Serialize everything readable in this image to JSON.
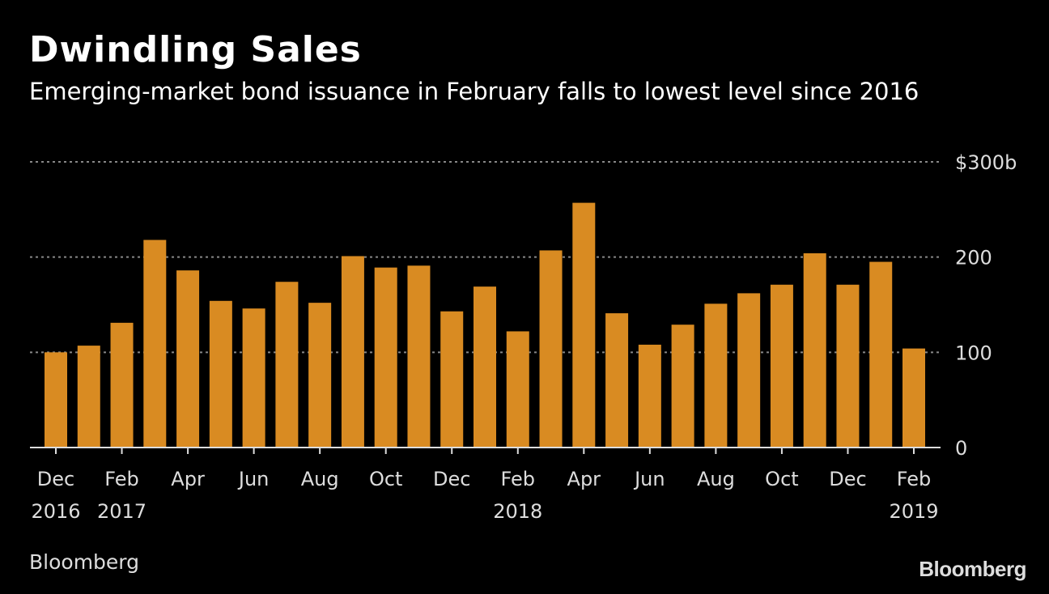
{
  "chart_data": {
    "type": "bar",
    "title": "Dwindling Sales",
    "subtitle": "Emerging-market bond issuance in February falls to lowest level since 2016",
    "xlabel": "",
    "ylabel": "",
    "ylim": [
      0,
      300
    ],
    "yticks": [
      0,
      100,
      200,
      300
    ],
    "ytick_labels": [
      "0",
      "100",
      "200",
      "$300b"
    ],
    "grid": true,
    "bar_color": "#d98b22",
    "categories": [
      "Dec 2016",
      "Jan 2017",
      "Feb 2017",
      "Mar 2017",
      "Apr 2017",
      "May 2017",
      "Jun 2017",
      "Jul 2017",
      "Aug 2017",
      "Sep 2017",
      "Oct 2017",
      "Nov 2017",
      "Dec 2017",
      "Jan 2018",
      "Feb 2018",
      "Mar 2018",
      "Apr 2018",
      "May 2018",
      "Jun 2018",
      "Jul 2018",
      "Aug 2018",
      "Sep 2018",
      "Oct 2018",
      "Nov 2018",
      "Dec 2018",
      "Jan 2019",
      "Feb 2019"
    ],
    "values": [
      100,
      107,
      131,
      218,
      186,
      154,
      146,
      174,
      152,
      201,
      189,
      191,
      143,
      169,
      122,
      207,
      257,
      141,
      108,
      129,
      151,
      162,
      171,
      204,
      171,
      195,
      104
    ],
    "xtick_labels": [
      {
        "index": 0,
        "month": "Dec",
        "year": "2016"
      },
      {
        "index": 2,
        "month": "Feb",
        "year": "2017"
      },
      {
        "index": 4,
        "month": "Apr",
        "year": ""
      },
      {
        "index": 6,
        "month": "Jun",
        "year": ""
      },
      {
        "index": 8,
        "month": "Aug",
        "year": ""
      },
      {
        "index": 10,
        "month": "Oct",
        "year": ""
      },
      {
        "index": 12,
        "month": "Dec",
        "year": ""
      },
      {
        "index": 14,
        "month": "Feb",
        "year": "2018"
      },
      {
        "index": 16,
        "month": "Apr",
        "year": ""
      },
      {
        "index": 18,
        "month": "Jun",
        "year": ""
      },
      {
        "index": 20,
        "month": "Aug",
        "year": ""
      },
      {
        "index": 22,
        "month": "Oct",
        "year": ""
      },
      {
        "index": 24,
        "month": "Dec",
        "year": ""
      },
      {
        "index": 26,
        "month": "Feb",
        "year": "2019"
      }
    ]
  },
  "source": "Bloomberg",
  "logo": "Bloomberg"
}
